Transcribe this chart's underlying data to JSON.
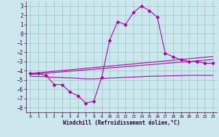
{
  "xlabel": "Windchill (Refroidissement éolien,°C)",
  "background_color": "#cce8ee",
  "grid_color": "#99cccc",
  "line_color": "#aa00aa",
  "xlim": [
    -0.5,
    23.5
  ],
  "ylim": [
    -8.5,
    3.5
  ],
  "xticks": [
    0,
    1,
    2,
    3,
    4,
    5,
    6,
    7,
    8,
    9,
    10,
    11,
    12,
    13,
    14,
    15,
    16,
    17,
    18,
    19,
    20,
    21,
    22,
    23
  ],
  "yticks": [
    -8,
    -7,
    -6,
    -5,
    -4,
    -3,
    -2,
    -1,
    0,
    1,
    2,
    3
  ],
  "hours": [
    0,
    1,
    2,
    3,
    4,
    5,
    6,
    7,
    8,
    9,
    10,
    11,
    12,
    13,
    14,
    15,
    16,
    17,
    18,
    19,
    20,
    21,
    22,
    23
  ],
  "windchill": [
    -4.3,
    -4.3,
    -4.5,
    -5.5,
    -5.5,
    -6.3,
    -6.7,
    -7.5,
    -7.3,
    -4.7,
    -0.7,
    1.3,
    1.0,
    2.3,
    3.0,
    2.5,
    1.8,
    -2.1,
    -2.5,
    -2.8,
    -3.0,
    -3.0,
    -3.2,
    -3.2
  ],
  "line1": [
    -4.3,
    -4.22,
    -4.14,
    -4.06,
    -3.98,
    -3.9,
    -3.82,
    -3.74,
    -3.66,
    -3.58,
    -3.5,
    -3.42,
    -3.34,
    -3.26,
    -3.18,
    -3.1,
    -3.02,
    -2.94,
    -2.86,
    -2.78,
    -2.7,
    -2.62,
    -2.54,
    -2.46
  ],
  "line2": [
    -4.4,
    -4.33,
    -4.26,
    -4.19,
    -4.12,
    -4.05,
    -3.98,
    -3.91,
    -3.84,
    -3.77,
    -3.7,
    -3.63,
    -3.56,
    -3.49,
    -3.42,
    -3.35,
    -3.28,
    -3.21,
    -3.14,
    -3.07,
    -3.0,
    -2.93,
    -2.86,
    -2.79
  ],
  "line3": [
    -4.6,
    -4.62,
    -4.64,
    -4.72,
    -4.75,
    -4.78,
    -4.82,
    -4.88,
    -4.88,
    -4.84,
    -4.8,
    -4.76,
    -4.72,
    -4.68,
    -4.64,
    -4.6,
    -4.58,
    -4.56,
    -4.54,
    -4.52,
    -4.5,
    -4.5,
    -4.5,
    -4.5
  ]
}
